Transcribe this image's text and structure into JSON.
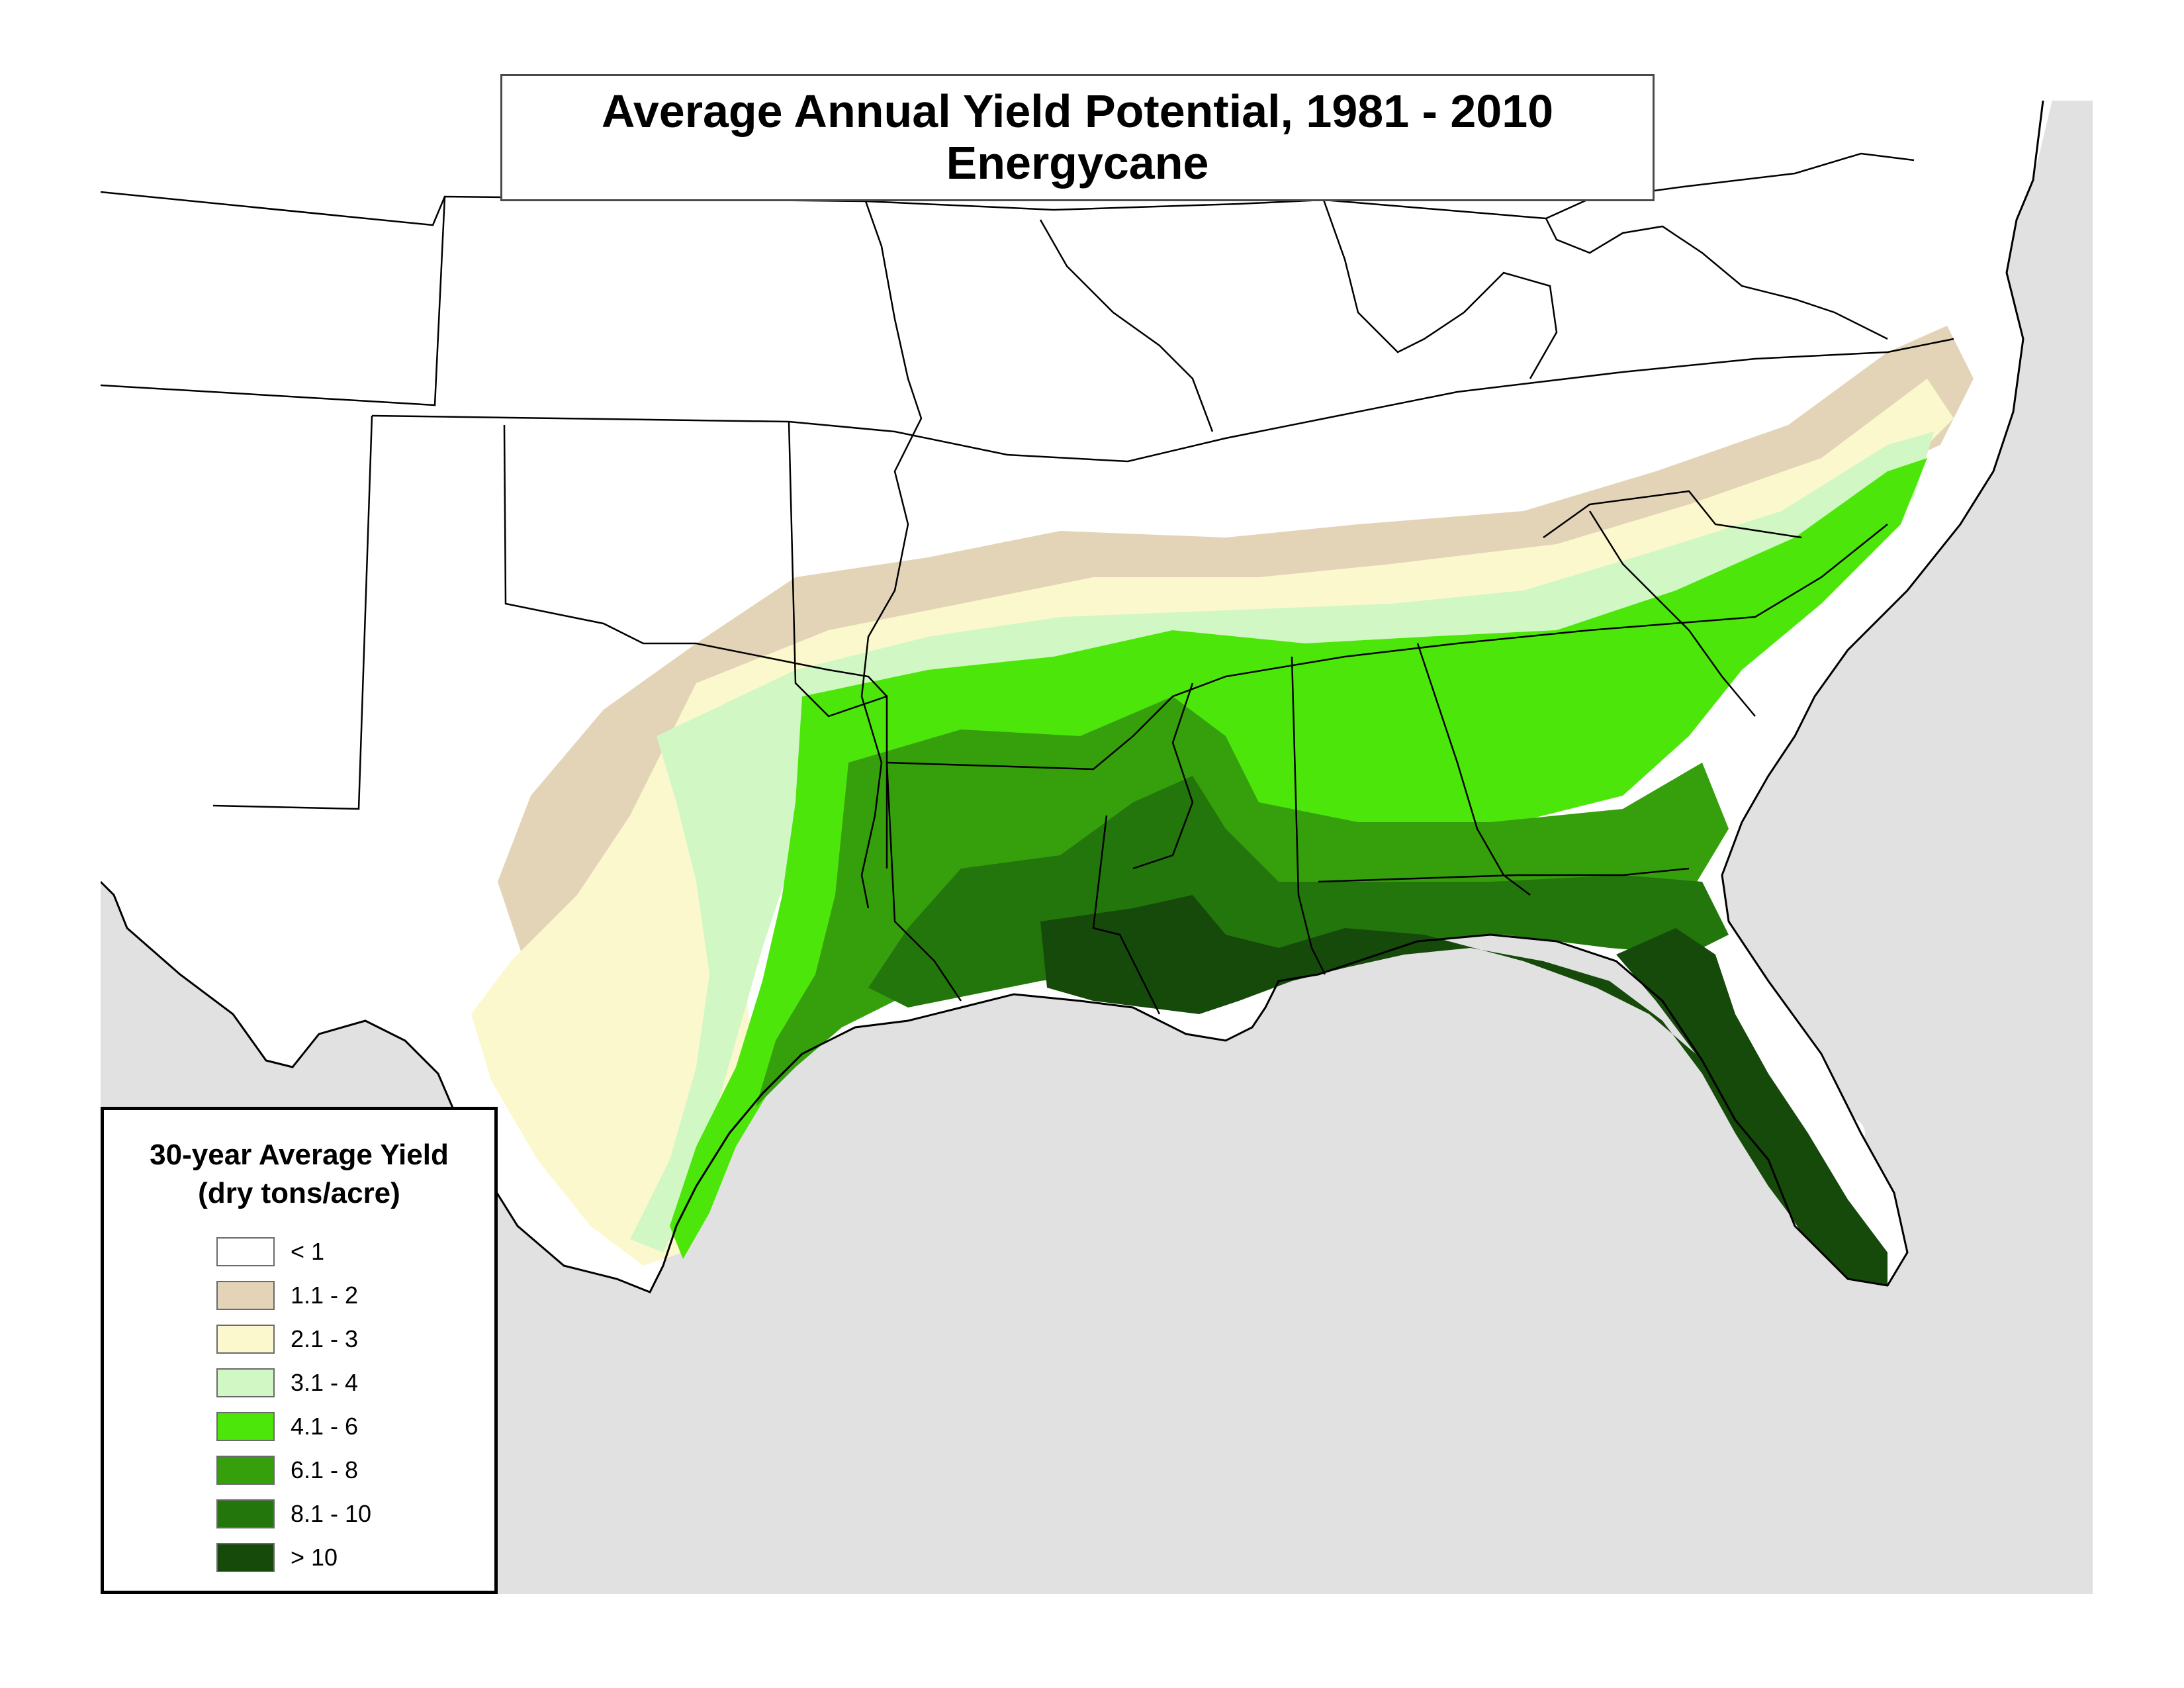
{
  "title": {
    "line1": "Average Annual Yield Potential, 1981 - 2010",
    "line2": "Energycane"
  },
  "legend": {
    "title_line1": "30-year Average Yield",
    "title_line2": "(dry tons/acre)",
    "items": [
      {
        "label": "< 1",
        "color": "#ffffff"
      },
      {
        "label": "1.1 - 2",
        "color": "#e3d4b8"
      },
      {
        "label": "2.1 - 3",
        "color": "#fcf8cd"
      },
      {
        "label": "3.1 - 4",
        "color": "#d1f7c4"
      },
      {
        "label": "4.1 - 6",
        "color": "#4ce60b"
      },
      {
        "label": "6.1 - 8",
        "color": "#36a00c"
      },
      {
        "label": "8.1 - 10",
        "color": "#22760b"
      },
      {
        "label": "> 10",
        "color": "#154a0a"
      }
    ]
  },
  "colors": {
    "background_water": "#e1e1e1",
    "land_none": "#ffffff",
    "boundary": "#000000"
  }
}
